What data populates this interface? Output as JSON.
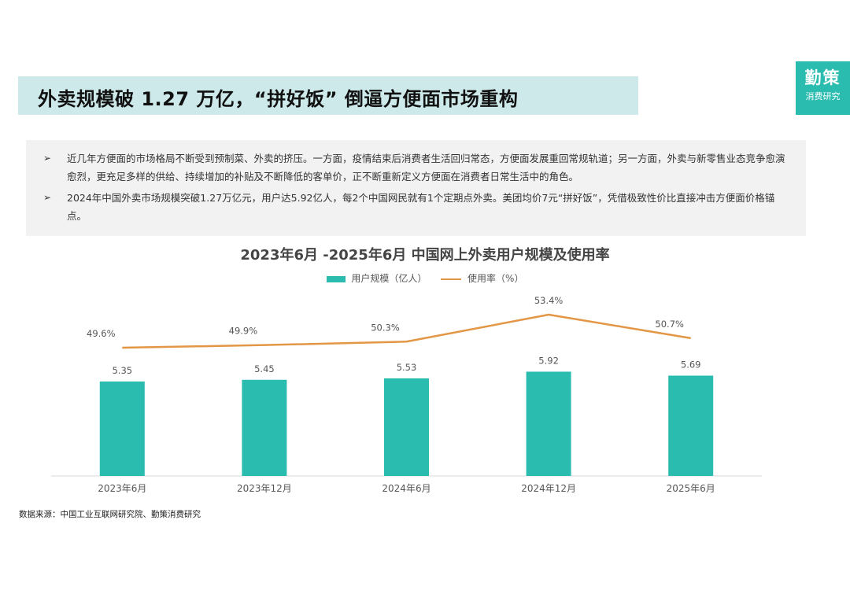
{
  "header": {
    "title": "外卖规模破 1.27 万亿，“拼好饭” 倒逼方便面市场重构",
    "brand_name": "勤策",
    "brand_sub": "消费研究"
  },
  "summary": {
    "bullet_marker": "➢",
    "bullets": [
      "近几年方便面的市场格局不断受到预制菜、外卖的挤压。一方面，疫情结束后消费者生活回归常态，方便面发展重回常规轨道；另一方面，外卖与新零售业态竞争愈演愈烈，更充足多样的供给、持续增加的补贴及不断降低的客单价，正不断重新定义方便面在消费者日常生活中的角色。",
      "2024年中国外卖市场规模突破1.27万亿元，用户达5.92亿人，每2个中国网民就有1个定期点外卖。美团均价7元“拼好饭”，凭借极致性价比直接冲击方便面价格锚点。"
    ]
  },
  "chart_data": {
    "type": "bar",
    "title": "2023年6月 -2025年6月 中国网上外卖用户规模及使用率",
    "categories": [
      "2023年6月",
      "2023年12月",
      "2024年6月",
      "2024年12月",
      "2025年6月"
    ],
    "series": [
      {
        "name": "用户规模（亿人）",
        "type": "bar",
        "values": [
          5.35,
          5.45,
          5.53,
          5.92,
          5.69
        ],
        "labels": [
          "5.35",
          "5.45",
          "5.53",
          "5.92",
          "5.69"
        ],
        "color": "#2bbcb0"
      },
      {
        "name": "使用率（%）",
        "type": "line",
        "values": [
          49.6,
          49.9,
          50.3,
          53.4,
          50.7
        ],
        "labels": [
          "49.6%",
          "49.9%",
          "50.3%",
          "53.4%",
          "50.7%"
        ],
        "color": "#e39645"
      }
    ],
    "bar_ylim": [
      0,
      7
    ],
    "line_ylim": [
      30,
      56
    ],
    "legend_position": "top",
    "grid": false,
    "xlabel": "",
    "ylabel": ""
  },
  "footer": {
    "source": "数据来源：中国工业互联网研究院、勤策消费研究"
  }
}
